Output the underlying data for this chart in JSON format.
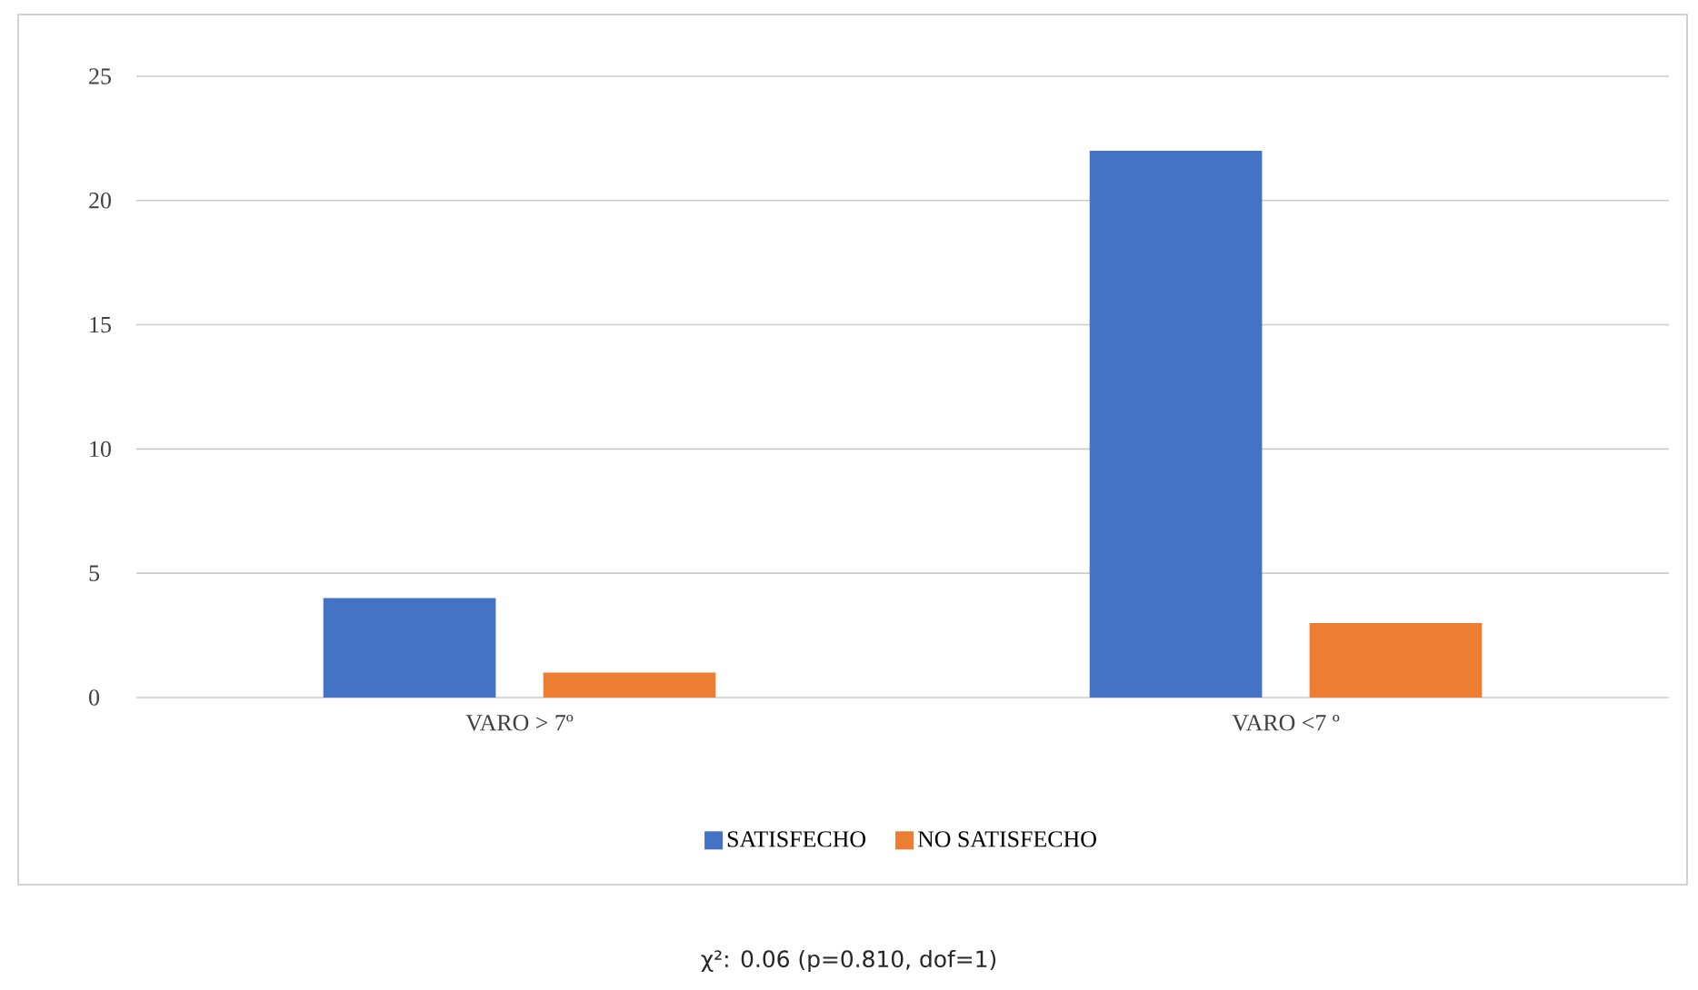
{
  "chart_data": {
    "type": "bar",
    "categories": [
      "VARO > 7º",
      "VARO <7 º"
    ],
    "series": [
      {
        "name": "SATISFECHO",
        "color": "#4472c4",
        "values": [
          4,
          22
        ]
      },
      {
        "name": "NO SATISFECHO",
        "color": "#ed7d31",
        "values": [
          1,
          3
        ]
      }
    ],
    "ylim": [
      0,
      25
    ],
    "yticks": [
      0,
      5,
      10,
      15,
      20,
      25
    ],
    "grid": "y",
    "legend": "bottom",
    "annotations": [
      "χ²: 0.06 (p=0.810, dof=1)"
    ]
  }
}
